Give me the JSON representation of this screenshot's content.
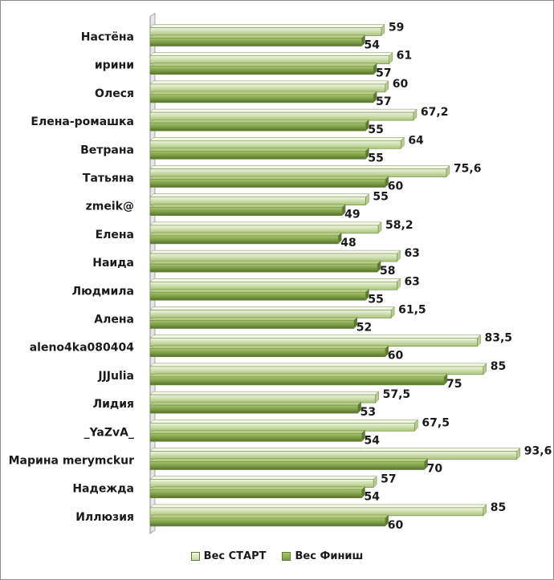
{
  "chart_data": {
    "type": "bar",
    "orientation": "horizontal",
    "categories": [
      "Настёна",
      "ирини",
      "Олеся",
      "Елена-ромашка",
      "Ветрана",
      "Татьяна",
      "zmeik@",
      "Елена",
      "Наида",
      "Людмила",
      "Алена",
      "aleno4ka080404",
      "JJJulia",
      "Лидия",
      "_YaZvA_",
      "Марина merymckur",
      "Надежда",
      "Иллюзия"
    ],
    "series": [
      {
        "name": "Вес СТАРТ",
        "values": [
          59,
          61,
          60,
          67.2,
          64,
          75.6,
          55,
          58.2,
          63,
          63,
          61.5,
          83.5,
          85,
          57.5,
          67.5,
          93.6,
          57,
          85
        ],
        "labels": [
          "59",
          "61",
          "60",
          "67,2",
          "64",
          "75,6",
          "55",
          "58,2",
          "63",
          "63",
          "61,5",
          "83,5",
          "85",
          "57,5",
          "67,5",
          "93,6",
          "57",
          "85"
        ],
        "color": "#c9dba6"
      },
      {
        "name": "Вес Финиш",
        "values": [
          54,
          57,
          57,
          55,
          55,
          60,
          49,
          48,
          58,
          55,
          52,
          60,
          75,
          53,
          54,
          70,
          54,
          60
        ],
        "labels": [
          "54",
          "57",
          "57",
          "55",
          "55",
          "60",
          "49",
          "48",
          "58",
          "55",
          "52",
          "60",
          "75",
          "53",
          "54",
          "70",
          "54",
          "60"
        ],
        "color": "#7c9b45"
      }
    ],
    "xlim": [
      0,
      100
    ],
    "gridlines": false,
    "legend_position": "bottom"
  }
}
